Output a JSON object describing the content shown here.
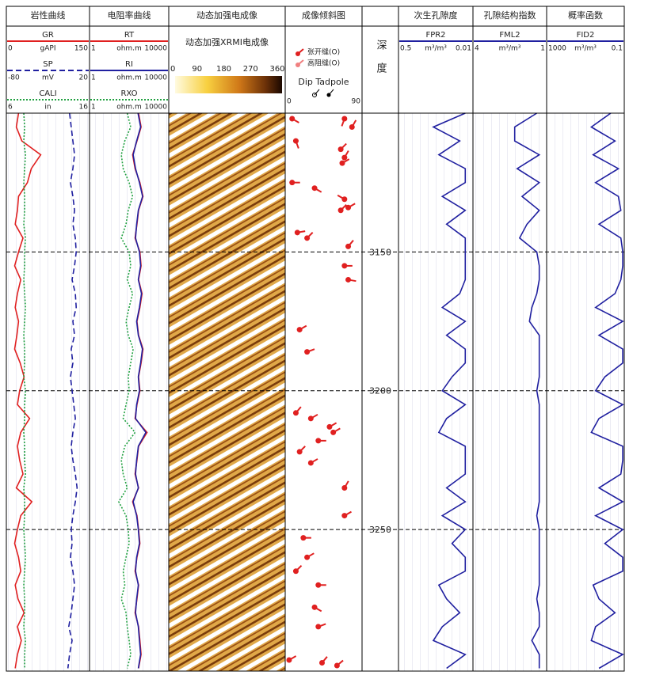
{
  "chart_data": {
    "type": "well_log",
    "depth_title": "深度",
    "ylim": [
      3100,
      3301
    ],
    "yticks": [
      3150,
      3200,
      3250
    ],
    "depth": [
      3100,
      3105,
      3110,
      3115,
      3120,
      3125,
      3130,
      3135,
      3140,
      3145,
      3150,
      3155,
      3160,
      3165,
      3170,
      3175,
      3180,
      3185,
      3190,
      3195,
      3200,
      3205,
      3210,
      3215,
      3220,
      3225,
      3230,
      3235,
      3240,
      3245,
      3250,
      3255,
      3260,
      3265,
      3270,
      3275,
      3280,
      3285,
      3290,
      3295,
      3300
    ],
    "tracks": [
      {
        "title": "岩性曲线",
        "curves": [
          {
            "name": "GR",
            "unit": "gAPI",
            "xlim": [
              0,
              150
            ],
            "color": "#e02020",
            "style": "solid",
            "values": [
              22,
              18,
              28,
              62,
              45,
              38,
              22,
              20,
              16,
              30,
              22,
              15,
              26,
              20,
              16,
              22,
              19,
              15,
              25,
              32,
              24,
              20,
              42,
              26,
              20,
              24,
              30,
              18,
              46,
              26,
              20,
              15,
              22,
              26,
              16,
              21,
              32,
              20,
              27,
              20,
              16
            ]
          },
          {
            "name": "SP",
            "unit": "mV",
            "xlim": [
              -80,
              20
            ],
            "color": "#2020a0",
            "style": "dashed",
            "values": [
              -4,
              -2,
              0,
              2,
              0,
              -3,
              0,
              2,
              0,
              3,
              4,
              2,
              -1,
              3,
              4,
              0,
              2,
              -2,
              0,
              -3,
              -1,
              1,
              3,
              0,
              -2,
              0,
              3,
              5,
              3,
              0,
              -2,
              -1,
              -3,
              0,
              2,
              0,
              -2,
              -5,
              -1,
              -4,
              -6
            ]
          },
          {
            "name": "CALI",
            "unit": "in",
            "xlim": [
              6,
              16
            ],
            "color": "#20a040",
            "style": "dotted",
            "values": [
              8.1,
              8.2,
              8.1,
              8.3,
              8.2,
              8.1,
              8.2,
              8.2,
              8.1,
              8.3,
              8.2,
              8.2,
              8.1,
              8.2,
              8.3,
              8.2,
              8.1,
              8.2,
              8.2,
              8.1,
              8.3,
              8.2,
              8.2,
              8.1,
              8.2,
              8.2,
              8.3,
              8.1,
              8.2,
              8.2,
              8.1,
              8.2,
              8.3,
              8.2,
              8.1,
              8.2,
              8.2,
              8.1,
              8.3,
              8.2,
              8.2
            ]
          }
        ]
      },
      {
        "title": "电阻率曲线",
        "log": true,
        "curves": [
          {
            "name": "RT",
            "unit": "ohm.m",
            "xlim": [
              1,
              10000
            ],
            "color": "#e02020",
            "style": "solid",
            "values": [
              300,
              400,
              250,
              150,
              200,
              350,
              500,
              300,
              250,
              200,
              350,
              400,
              300,
              450,
              350,
              250,
              300,
              500,
              400,
              300,
              350,
              250,
              200,
              800,
              300,
              250,
              200,
              300,
              150,
              250,
              300,
              350,
              250,
              200,
              300,
              250,
              200,
              300,
              350,
              400,
              300
            ]
          },
          {
            "name": "RI",
            "unit": "ohm.m",
            "xlim": [
              1,
              10000
            ],
            "color": "#2020a0",
            "style": "solid",
            "values": [
              280,
              380,
              240,
              160,
              210,
              330,
              480,
              290,
              240,
              210,
              330,
              380,
              290,
              420,
              330,
              240,
              290,
              470,
              380,
              290,
              330,
              240,
              210,
              700,
              290,
              240,
              210,
              290,
              160,
              240,
              290,
              330,
              240,
              210,
              290,
              240,
              210,
              290,
              330,
              380,
              290
            ]
          },
          {
            "name": "RXO",
            "unit": "ohm.m",
            "xlim": [
              1,
              10000
            ],
            "color": "#20a040",
            "style": "dotted",
            "values": [
              80,
              120,
              60,
              40,
              50,
              100,
              150,
              90,
              70,
              40,
              100,
              120,
              80,
              150,
              100,
              70,
              90,
              160,
              120,
              90,
              100,
              70,
              50,
              200,
              60,
              40,
              50,
              80,
              30,
              70,
              90,
              100,
              70,
              50,
              60,
              40,
              70,
              80,
              100,
              120,
              80
            ]
          }
        ]
      },
      {
        "title": "动态加强电成像",
        "subtitle": "动态加强XRMI电成像",
        "colorbar": {
          "range": [
            0,
            360
          ],
          "ticks": [
            0,
            90,
            180,
            270,
            360
          ]
        }
      },
      {
        "title": "成像倾斜图",
        "legend": [
          {
            "name": "张开缝(O)",
            "color": "#e02020"
          },
          {
            "name": "高阻缝(O)",
            "color": "#f08080"
          }
        ],
        "scale_title": "Dip Tadpole",
        "xlim": [
          0,
          90
        ],
        "tadpoles": {
          "depth": [
            3102,
            3102,
            3105,
            3110,
            3113,
            3116,
            3118,
            3125,
            3127,
            3131,
            3134,
            3135,
            3143,
            3145,
            3148,
            3155,
            3160,
            3178,
            3186,
            3208,
            3210,
            3213,
            3215,
            3218,
            3222,
            3226,
            3235,
            3245,
            3253,
            3260,
            3265,
            3270,
            3278,
            3285,
            3297,
            3298,
            3299
          ],
          "dip": [
            5,
            75,
            85,
            10,
            70,
            75,
            72,
            5,
            35,
            75,
            80,
            70,
            12,
            25,
            80,
            75,
            80,
            15,
            25,
            10,
            30,
            55,
            60,
            40,
            15,
            30,
            75,
            75,
            20,
            25,
            10,
            40,
            35,
            40,
            1,
            45,
            65
          ],
          "azimuth": [
            120,
            200,
            30,
            160,
            45,
            30,
            60,
            90,
            120,
            300,
            60,
            45,
            80,
            45,
            40,
            90,
            100,
            60,
            70,
            40,
            60,
            60,
            60,
            90,
            45,
            60,
            30,
            60,
            90,
            60,
            45,
            90,
            120,
            70,
            60,
            40,
            50
          ]
        }
      },
      {
        "title": "次生孔隙度",
        "log": true,
        "curves": [
          {
            "name": "FPR2",
            "unit": "m³/m³",
            "xlim": [
              0.5,
              0.01
            ],
            "color": "#2020a0",
            "style": "solid",
            "values": [
              0.015,
              0.08,
              0.02,
              0.06,
              0.015,
              0.015,
              0.05,
              0.015,
              0.04,
              0.015,
              0.015,
              0.015,
              0.015,
              0.02,
              0.05,
              0.015,
              0.04,
              0.015,
              0.015,
              0.03,
              0.05,
              0.015,
              0.04,
              0.06,
              0.015,
              0.015,
              0.015,
              0.04,
              0.015,
              0.05,
              0.015,
              0.03,
              0.015,
              0.015,
              0.06,
              0.04,
              0.02,
              0.05,
              0.08,
              0.015,
              0.04
            ]
          }
        ]
      },
      {
        "title": "孔隙结构指数",
        "curves": [
          {
            "name": "FML2",
            "unit": "m³/m³",
            "xlim": [
              4,
              1
            ],
            "color": "#2020a0",
            "style": "solid",
            "values": [
              1.4,
              2.3,
              2.3,
              1.3,
              2.2,
              1.3,
              2.0,
              1.3,
              1.8,
              2.1,
              1.4,
              1.3,
              1.3,
              1.4,
              1.6,
              1.7,
              1.3,
              1.3,
              1.3,
              1.3,
              1.4,
              1.3,
              1.3,
              1.3,
              1.3,
              1.3,
              1.3,
              1.3,
              1.3,
              1.4,
              1.3,
              1.3,
              1.3,
              1.3,
              1.3,
              1.4,
              1.3,
              1.3,
              1.6,
              1.3,
              1.3
            ]
          }
        ]
      },
      {
        "title": "概率函数",
        "log": true,
        "curves": [
          {
            "name": "FID2",
            "unit": "m³/m³",
            "xlim": [
              1000,
              0.1
            ],
            "color": "#2020a0",
            "style": "solid",
            "values": [
              0.5,
              5,
              0.3,
              4,
              0.2,
              3,
              0.2,
              0.15,
              2,
              0.15,
              0.12,
              0.12,
              0.15,
              0.3,
              3,
              0.12,
              2,
              0.12,
              0.12,
              1,
              3,
              0.12,
              2,
              5,
              0.12,
              0.12,
              0.15,
              2,
              0.12,
              3,
              0.12,
              1,
              0.12,
              0.12,
              4,
              2,
              0.3,
              3,
              5,
              0.12,
              2
            ]
          }
        ]
      }
    ]
  }
}
